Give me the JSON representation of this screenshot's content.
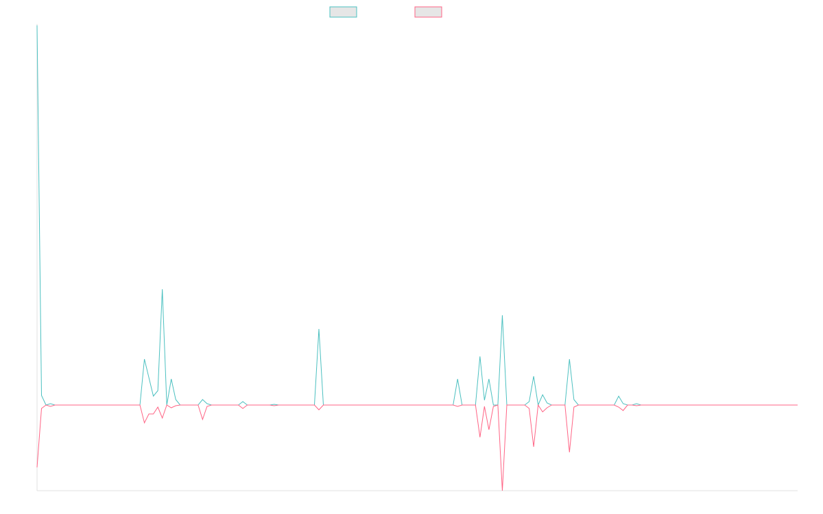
{
  "chart_data": {
    "type": "line",
    "ylim": [
      -125,
      556
    ],
    "legend": "top",
    "series": [
      {
        "color": "#4bc0c0",
        "values": [
          554,
          14,
          0,
          2,
          0,
          0,
          0,
          0,
          0,
          0,
          0,
          0,
          0,
          0,
          0,
          0,
          0,
          0,
          0,
          0,
          0,
          0,
          0,
          0,
          67,
          40,
          13,
          21,
          169,
          0,
          38,
          8,
          0,
          0,
          0,
          0,
          0,
          8,
          2,
          0,
          0,
          0,
          0,
          0,
          0,
          0,
          5,
          0,
          0,
          0,
          0,
          0,
          0,
          1,
          0,
          0,
          0,
          0,
          0,
          0,
          0,
          0,
          0,
          111,
          0,
          0,
          0,
          0,
          0,
          0,
          0,
          0,
          0,
          0,
          0,
          0,
          0,
          0,
          0,
          0,
          0,
          0,
          0,
          0,
          0,
          0,
          0,
          0,
          0,
          0,
          0,
          0,
          0,
          0,
          38,
          0,
          0,
          0,
          0,
          71,
          7,
          38,
          0,
          0,
          131,
          0,
          0,
          0,
          0,
          0,
          5,
          42,
          0,
          15,
          3,
          0,
          0,
          0,
          0,
          67,
          8,
          0,
          0,
          0,
          0,
          0,
          0,
          0,
          0,
          0,
          13,
          2,
          0,
          0,
          2,
          0,
          0,
          0,
          0,
          0,
          0,
          0,
          0,
          0,
          0,
          0,
          0,
          0,
          0,
          0,
          0,
          0,
          0,
          0,
          0,
          0,
          0,
          0,
          0,
          0,
          0,
          0,
          0,
          0,
          0,
          0,
          0,
          0,
          0,
          0,
          0
        ]
      },
      {
        "color": "#ff6384",
        "values": [
          -91,
          -5,
          0,
          -2,
          0,
          0,
          0,
          0,
          0,
          0,
          0,
          0,
          0,
          0,
          0,
          0,
          0,
          0,
          0,
          0,
          0,
          0,
          0,
          0,
          -26,
          -13,
          -13,
          -3,
          -19,
          0,
          -4,
          -1,
          0,
          0,
          0,
          0,
          0,
          -21,
          -2,
          0,
          0,
          0,
          0,
          0,
          0,
          0,
          -5,
          0,
          0,
          0,
          0,
          0,
          0,
          -1,
          0,
          0,
          0,
          0,
          0,
          0,
          0,
          0,
          0,
          -7,
          0,
          0,
          0,
          0,
          0,
          0,
          0,
          0,
          0,
          0,
          0,
          0,
          0,
          0,
          0,
          0,
          0,
          0,
          0,
          0,
          0,
          0,
          0,
          0,
          0,
          0,
          0,
          0,
          0,
          0,
          -2,
          0,
          0,
          0,
          0,
          -47,
          -2,
          -36,
          -2,
          0,
          -125,
          0,
          0,
          0,
          0,
          0,
          -5,
          -61,
          0,
          -10,
          -4,
          0,
          0,
          0,
          0,
          -69,
          -3,
          0,
          0,
          0,
          0,
          0,
          0,
          0,
          0,
          0,
          -3,
          -8,
          0,
          0,
          -1,
          0,
          0,
          0,
          0,
          0,
          0,
          0,
          0,
          0,
          0,
          0,
          0,
          0,
          0,
          0,
          0,
          0,
          0,
          0,
          0,
          0,
          0,
          0,
          0,
          0,
          0,
          0,
          0,
          0,
          0,
          0,
          0,
          0,
          0,
          0,
          0
        ]
      }
    ]
  }
}
